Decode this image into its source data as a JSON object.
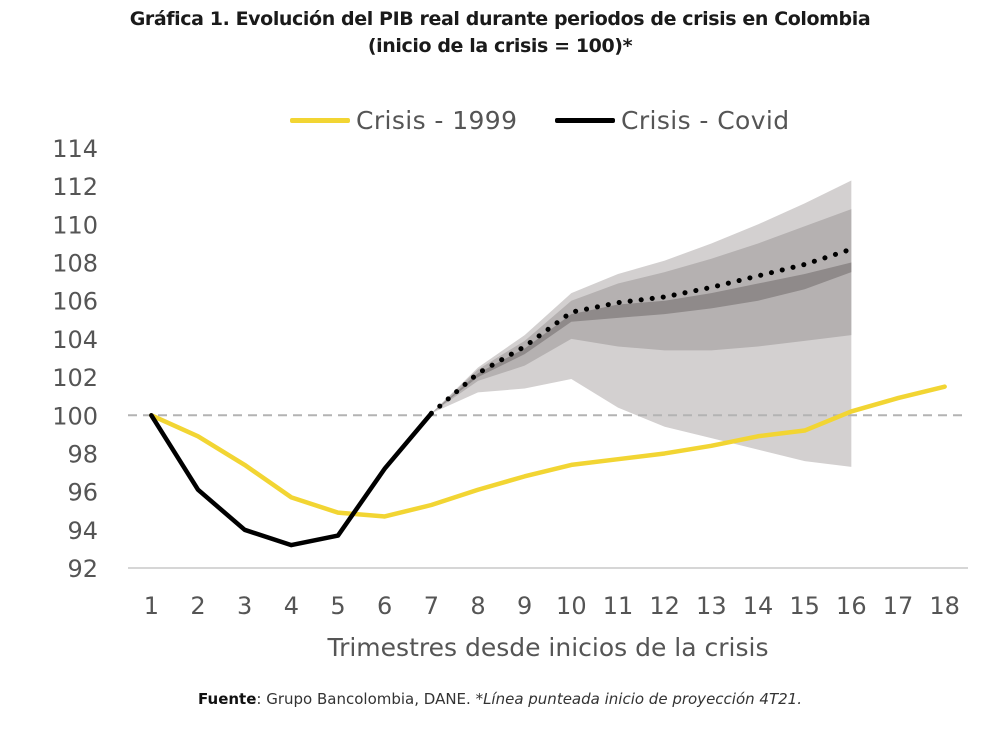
{
  "chart_data": {
    "type": "line",
    "title": "Gráfica 1. Evolución del PIB real durante periodos de crisis en Colombia",
    "subtitle": "(inicio de la crisis = 100)*",
    "xlabel": "Trimestres desde inicios de la crisis",
    "ylabel": "",
    "x": [
      1,
      2,
      3,
      4,
      5,
      6,
      7,
      8,
      9,
      10,
      11,
      12,
      13,
      14,
      15,
      16,
      17,
      18
    ],
    "xlim": [
      0.5,
      18.5
    ],
    "ylim": [
      92,
      114
    ],
    "yticks": [
      92,
      94,
      96,
      98,
      100,
      102,
      104,
      106,
      108,
      110,
      112,
      114
    ],
    "reference_line": 100,
    "grid": false,
    "legend_position": "top",
    "series": [
      {
        "name": "Crisis - 1999",
        "color": "#f2d533",
        "style": "solid",
        "x": [
          1,
          2,
          3,
          4,
          5,
          6,
          7,
          8,
          9,
          10,
          11,
          12,
          13,
          14,
          15,
          16,
          17,
          18
        ],
        "values": [
          100,
          98.9,
          97.4,
          95.7,
          94.9,
          94.7,
          95.3,
          96.1,
          96.8,
          97.4,
          97.7,
          98.0,
          98.4,
          98.9,
          99.2,
          100.2,
          100.9,
          101.5
        ]
      },
      {
        "name": "Crisis - Covid",
        "color": "#000000",
        "style": "solid",
        "x": [
          1,
          2,
          3,
          4,
          5,
          6,
          7
        ],
        "values": [
          100,
          96.1,
          94.0,
          93.2,
          93.7,
          97.2,
          100.1
        ]
      },
      {
        "name": "Crisis - Covid (proyección)",
        "color": "#000000",
        "style": "dotted",
        "x": [
          7,
          8,
          9,
          10,
          11,
          12,
          13,
          14,
          15,
          16
        ],
        "values": [
          100.1,
          102.2,
          103.6,
          105.4,
          105.9,
          106.2,
          106.7,
          107.3,
          107.9,
          108.7
        ]
      }
    ],
    "fan_bands": [
      {
        "color": "#d3d0d0",
        "x": [
          7,
          8,
          9,
          10,
          11,
          12,
          13,
          14,
          15,
          16
        ],
        "upper": [
          100.1,
          102.5,
          104.2,
          106.4,
          107.4,
          108.1,
          109.0,
          110.0,
          111.1,
          112.3
        ],
        "lower": [
          100.1,
          101.2,
          101.4,
          101.9,
          100.4,
          99.4,
          98.8,
          98.2,
          97.6,
          97.3
        ]
      },
      {
        "color": "#b5b1b1",
        "x": [
          7,
          8,
          9,
          10,
          11,
          12,
          13,
          14,
          15,
          16
        ],
        "upper": [
          100.1,
          102.4,
          103.9,
          106.0,
          106.9,
          107.5,
          108.2,
          109.0,
          109.9,
          110.8
        ],
        "lower": [
          100.1,
          101.8,
          102.6,
          104.0,
          103.6,
          103.4,
          103.4,
          103.6,
          103.9,
          104.2
        ]
      },
      {
        "color": "#8f8a8a",
        "x": [
          7,
          8,
          9,
          10,
          11,
          12,
          13,
          14,
          15,
          16
        ],
        "upper": [
          100.1,
          102.2,
          103.5,
          105.3,
          105.8,
          106.0,
          106.4,
          106.9,
          107.4,
          108.0
        ],
        "lower": [
          100.1,
          102.0,
          103.2,
          104.9,
          105.1,
          105.3,
          105.6,
          106.0,
          106.6,
          107.5
        ]
      }
    ]
  },
  "footer": {
    "source_label": "Fuente",
    "source_text": ": Grupo Bancolombia, DANE. ",
    "note": "*Línea punteada inicio de proyección 4T21."
  }
}
